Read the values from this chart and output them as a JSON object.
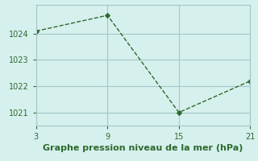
{
  "x": [
    3,
    9,
    15,
    21
  ],
  "y": [
    1024.1,
    1024.7,
    1021.0,
    1022.2
  ],
  "line_color": "#2d6a2d",
  "marker_color": "#2d6a2d",
  "background_color": "#d6f0ee",
  "grid_color": "#a0c8c8",
  "xlabel": "Graphe pression niveau de la mer (hPa)",
  "xlim": [
    3,
    21
  ],
  "ylim": [
    1020.5,
    1025.1
  ],
  "xticks": [
    3,
    9,
    15,
    21
  ],
  "yticks": [
    1021,
    1022,
    1023,
    1024
  ],
  "xlabel_fontsize": 8,
  "tick_fontsize": 7
}
